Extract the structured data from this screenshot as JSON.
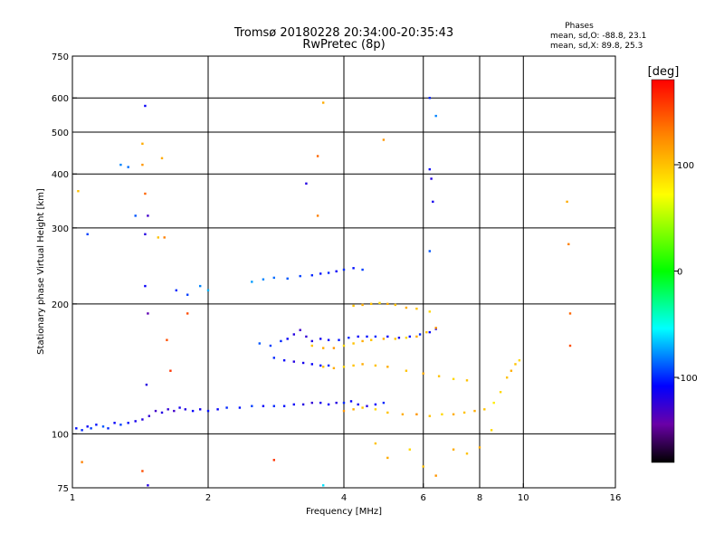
{
  "chart_data": {
    "type": "scatter",
    "title": "Tromsø 20180228 20:34:00-20:35:43",
    "subtitle": "RwPretec (8p)",
    "xlabel": "Frequency [MHz]",
    "ylabel": "Stationary phase Virtual Height [km]",
    "x_scale": "log",
    "y_scale": "log",
    "xlim": [
      1,
      16
    ],
    "ylim": [
      75,
      750
    ],
    "x_ticks": [
      1,
      2,
      4,
      6,
      8,
      10,
      16
    ],
    "y_ticks": [
      75,
      100,
      200,
      300,
      400,
      500,
      600,
      750
    ],
    "x_grid": [
      2,
      4,
      6,
      8,
      10
    ],
    "y_grid": [
      100,
      200,
      300,
      400,
      500,
      600
    ],
    "grid": true,
    "info_header": "Phases",
    "info_lines": [
      "mean, sd,O: -88.8, 23.1",
      "mean, sd,X:  89.8, 25.3"
    ],
    "colorbar": {
      "label": "[deg]",
      "range": [
        -180,
        180
      ],
      "ticks": [
        100,
        0,
        -100
      ],
      "colors": [
        "#ff0000",
        "#ff8000",
        "#ffff00",
        "#00ff00",
        "#00ffff",
        "#0000ff",
        "#6a00a8",
        "#000000"
      ]
    },
    "series": [
      {
        "points": [
          [
            1.02,
            103,
            -105
          ],
          [
            1.05,
            102,
            -100
          ],
          [
            1.08,
            104,
            -110
          ],
          [
            1.1,
            103,
            -95
          ],
          [
            1.13,
            105,
            -105
          ],
          [
            1.17,
            104,
            -90
          ],
          [
            1.2,
            103,
            -100
          ],
          [
            1.24,
            106,
            -110
          ],
          [
            1.28,
            105,
            -95
          ],
          [
            1.33,
            106,
            -105
          ],
          [
            1.38,
            107,
            -115
          ],
          [
            1.43,
            108,
            -120
          ],
          [
            1.48,
            110,
            -125
          ],
          [
            1.53,
            113,
            -130
          ],
          [
            1.58,
            112,
            -120
          ],
          [
            1.63,
            114,
            -125
          ],
          [
            1.68,
            113,
            -130
          ],
          [
            1.73,
            115,
            -115
          ],
          [
            1.78,
            114,
            -120
          ],
          [
            1.85,
            113,
            -110
          ],
          [
            1.92,
            114,
            -115
          ],
          [
            2.0,
            113,
            -105
          ],
          [
            2.1,
            114,
            -110
          ],
          [
            2.2,
            115,
            -100
          ],
          [
            2.35,
            115,
            -105
          ],
          [
            2.5,
            116,
            -95
          ],
          [
            2.65,
            116,
            -110
          ],
          [
            2.8,
            116,
            -100
          ],
          [
            2.95,
            116,
            -105
          ],
          [
            3.1,
            117,
            -110
          ],
          [
            3.25,
            117,
            -120
          ],
          [
            3.4,
            118,
            -125
          ],
          [
            3.55,
            118,
            -115
          ],
          [
            3.7,
            117,
            -110
          ],
          [
            3.85,
            118,
            -120
          ],
          [
            4.0,
            118,
            -100
          ],
          [
            4.15,
            119,
            -110
          ],
          [
            4.3,
            117,
            -115
          ],
          [
            4.5,
            116,
            -120
          ],
          [
            4.7,
            117,
            -110
          ],
          [
            4.9,
            118,
            -100
          ]
        ]
      },
      {
        "points": [
          [
            4.0,
            113,
            120
          ],
          [
            4.2,
            114,
            110
          ],
          [
            4.4,
            115,
            100
          ],
          [
            4.7,
            114,
            90
          ],
          [
            5.0,
            112,
            100
          ],
          [
            5.4,
            111,
            110
          ],
          [
            5.8,
            111,
            120
          ],
          [
            6.2,
            110,
            100
          ],
          [
            6.6,
            111,
            90
          ],
          [
            7.0,
            111,
            110
          ],
          [
            7.4,
            112,
            100
          ],
          [
            7.8,
            113,
            110
          ],
          [
            8.2,
            114,
            100
          ],
          [
            8.6,
            118,
            80
          ],
          [
            8.9,
            125,
            90
          ],
          [
            9.2,
            135,
            100
          ],
          [
            9.4,
            140,
            110
          ],
          [
            9.6,
            145,
            100
          ],
          [
            9.8,
            148,
            90
          ]
        ]
      },
      {
        "points": [
          [
            2.6,
            162,
            -90
          ],
          [
            2.75,
            160,
            -95
          ],
          [
            2.9,
            164,
            -100
          ],
          [
            3.0,
            166,
            -110
          ],
          [
            3.1,
            170,
            -120
          ],
          [
            3.2,
            174,
            -130
          ],
          [
            3.3,
            168,
            -125
          ],
          [
            3.4,
            164,
            -120
          ],
          [
            3.55,
            166,
            -115
          ],
          [
            3.7,
            165,
            -110
          ],
          [
            3.9,
            165,
            -105
          ],
          [
            4.1,
            167,
            -100
          ],
          [
            4.3,
            168,
            -110
          ],
          [
            4.5,
            168,
            -105
          ],
          [
            4.7,
            168,
            -100
          ],
          [
            5.0,
            168,
            -110
          ],
          [
            5.3,
            167,
            -115
          ],
          [
            5.6,
            168,
            -105
          ],
          [
            5.9,
            170,
            -100
          ],
          [
            6.2,
            172,
            -110
          ],
          [
            6.4,
            175,
            -120
          ]
        ]
      },
      {
        "points": [
          [
            3.4,
            160,
            100
          ],
          [
            3.6,
            158,
            110
          ],
          [
            3.8,
            158,
            120
          ],
          [
            4.0,
            160,
            90
          ],
          [
            4.2,
            162,
            100
          ],
          [
            4.4,
            164,
            110
          ],
          [
            4.6,
            165,
            100
          ],
          [
            4.9,
            166,
            110
          ],
          [
            5.2,
            166,
            100
          ],
          [
            5.5,
            167,
            90
          ],
          [
            5.8,
            168,
            110
          ],
          [
            6.1,
            172,
            100
          ],
          [
            6.4,
            176,
            120
          ]
        ]
      },
      {
        "points": [
          [
            2.8,
            150,
            -100
          ],
          [
            2.95,
            148,
            -110
          ],
          [
            3.1,
            147,
            -120
          ],
          [
            3.25,
            146,
            -115
          ],
          [
            3.4,
            145,
            -110
          ],
          [
            3.55,
            144,
            -105
          ],
          [
            3.7,
            144,
            -100
          ]
        ]
      },
      {
        "points": [
          [
            3.6,
            143,
            100
          ],
          [
            3.8,
            142,
            110
          ],
          [
            4.0,
            143,
            90
          ],
          [
            4.2,
            144,
            100
          ],
          [
            4.4,
            145,
            110
          ],
          [
            4.7,
            144,
            100
          ],
          [
            5.0,
            143,
            110
          ],
          [
            5.5,
            140,
            100
          ],
          [
            6.0,
            138,
            110
          ],
          [
            6.5,
            136,
            100
          ],
          [
            7.0,
            134,
            90
          ],
          [
            7.5,
            133,
            100
          ]
        ]
      },
      {
        "points": [
          [
            2.5,
            225,
            -75
          ],
          [
            2.65,
            228,
            -80
          ],
          [
            2.8,
            230,
            -85
          ],
          [
            3.0,
            229,
            -90
          ],
          [
            3.2,
            232,
            -95
          ],
          [
            3.4,
            233,
            -100
          ],
          [
            3.55,
            235,
            -105
          ],
          [
            3.7,
            236,
            -100
          ],
          [
            3.85,
            238,
            -110
          ],
          [
            4.0,
            240,
            -100
          ],
          [
            4.2,
            242,
            -105
          ],
          [
            4.4,
            240,
            -95
          ]
        ]
      },
      {
        "points": [
          [
            4.2,
            198,
            100
          ],
          [
            4.4,
            199,
            110
          ],
          [
            4.6,
            200,
            100
          ],
          [
            4.8,
            201,
            90
          ],
          [
            5.0,
            200,
            110
          ],
          [
            5.2,
            199,
            100
          ],
          [
            5.5,
            196,
            110
          ],
          [
            5.8,
            195,
            100
          ],
          [
            6.2,
            192,
            90
          ]
        ]
      },
      {
        "points": [
          [
            1.03,
            365,
            100
          ],
          [
            1.08,
            290,
            -95
          ],
          [
            1.28,
            420,
            -80
          ],
          [
            1.33,
            415,
            -85
          ],
          [
            1.38,
            320,
            -90
          ],
          [
            1.45,
            575,
            -110
          ],
          [
            1.43,
            470,
            110
          ],
          [
            1.45,
            360,
            140
          ],
          [
            1.43,
            420,
            120
          ],
          [
            1.45,
            290,
            -120
          ],
          [
            1.47,
            320,
            -130
          ],
          [
            1.45,
            220,
            -110
          ],
          [
            1.47,
            190,
            -140
          ],
          [
            1.46,
            130,
            -120
          ],
          [
            1.55,
            285,
            100
          ],
          [
            1.58,
            435,
            110
          ],
          [
            1.6,
            285,
            130
          ],
          [
            1.62,
            165,
            150
          ],
          [
            1.65,
            140,
            160
          ],
          [
            1.8,
            190,
            150
          ],
          [
            1.7,
            215,
            -100
          ],
          [
            1.8,
            210,
            -95
          ],
          [
            1.92,
            220,
            -80
          ],
          [
            2.0,
            215,
            -70
          ],
          [
            3.3,
            380,
            -120
          ],
          [
            3.5,
            440,
            140
          ],
          [
            3.6,
            585,
            110
          ],
          [
            3.5,
            320,
            130
          ],
          [
            4.9,
            480,
            120
          ],
          [
            6.2,
            600,
            -100
          ],
          [
            6.4,
            545,
            -80
          ],
          [
            6.2,
            410,
            -110
          ],
          [
            6.25,
            390,
            -120
          ],
          [
            6.3,
            345,
            -115
          ],
          [
            6.2,
            265,
            -90
          ],
          [
            12.5,
            345,
            110
          ],
          [
            12.6,
            275,
            130
          ],
          [
            12.7,
            190,
            140
          ],
          [
            12.7,
            160,
            150
          ],
          [
            1.05,
            86,
            130
          ],
          [
            1.43,
            82,
            150
          ],
          [
            1.47,
            76,
            -120
          ],
          [
            2.8,
            87,
            160
          ],
          [
            3.6,
            76,
            -60
          ],
          [
            4.7,
            95,
            100
          ],
          [
            5.0,
            88,
            110
          ],
          [
            5.6,
            92,
            90
          ],
          [
            6.0,
            84,
            100
          ],
          [
            6.4,
            80,
            120
          ],
          [
            7.0,
            92,
            110
          ],
          [
            7.5,
            90,
            100
          ],
          [
            8.0,
            93,
            110
          ],
          [
            8.5,
            102,
            90
          ]
        ]
      }
    ]
  }
}
